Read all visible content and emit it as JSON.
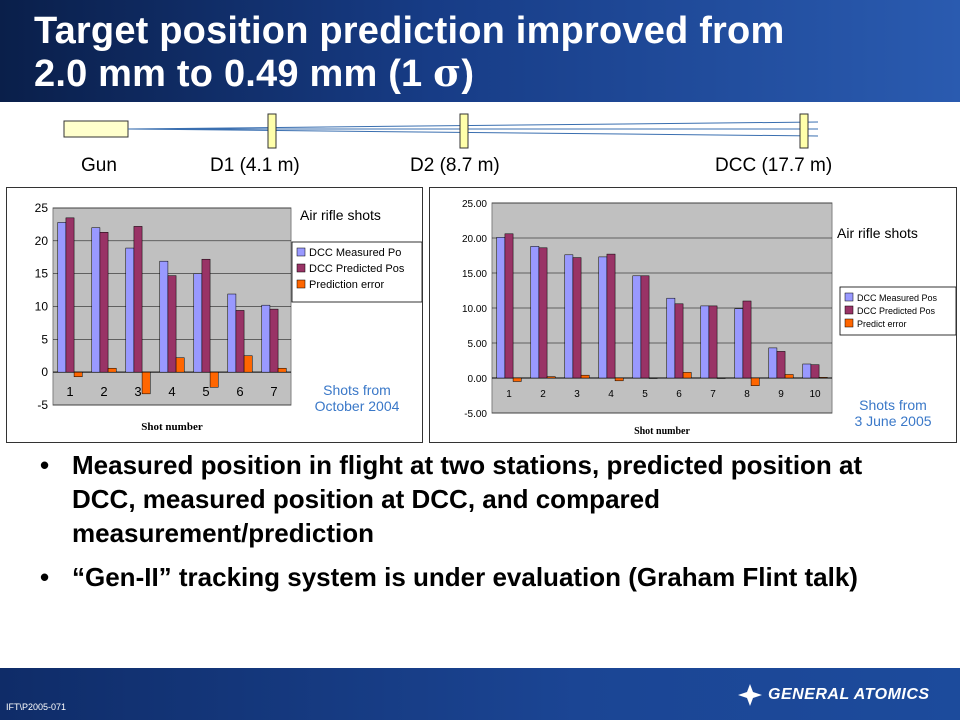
{
  "title": {
    "line1": "Target position prediction improved from",
    "line2_prefix": "2.0 mm to 0.49 mm (1 ",
    "sigma": "σ",
    "line2_suffix": ")"
  },
  "beamline": {
    "labels": [
      "Gun",
      "D1 (4.1 m)",
      "D2 (8.7 m)",
      "DCC (17.7 m)"
    ]
  },
  "left_panel": {
    "note_title": "Air rifle shots",
    "note_date_line1": "Shots from",
    "note_date_line2": "October 2004"
  },
  "right_panel": {
    "note_title": "Air rifle shots",
    "note_date_line1": "Shots from",
    "note_date_line2": "3 June 2005"
  },
  "bullets": [
    "Measured position in flight at two stations, predicted position at DCC, measured position at DCC, and compared measurement/prediction",
    "“Gen-II” tracking system is under evaluation (Graham Flint talk)"
  ],
  "footer": {
    "doc_id": "IFT\\P2005-071",
    "logo_text": "GENERAL ATOMICS"
  },
  "colors": {
    "measured": "#9999ff",
    "predicted": "#993366",
    "error": "#ff6600",
    "plot_bg": "#c0c0c0"
  },
  "chart_data": [
    {
      "type": "bar",
      "categories": [
        "1",
        "2",
        "3",
        "4",
        "5",
        "6",
        "7"
      ],
      "series": [
        {
          "name": "DCC Measured Po",
          "values": [
            22.8,
            22.0,
            18.9,
            16.9,
            15.0,
            11.9,
            10.2
          ]
        },
        {
          "name": "DCC Predicted Pos",
          "values": [
            23.5,
            21.3,
            22.2,
            14.7,
            17.2,
            9.4,
            9.6
          ]
        },
        {
          "name": "Prediction error",
          "values": [
            -0.7,
            0.6,
            -3.3,
            2.2,
            -2.3,
            2.5,
            0.6
          ]
        }
      ],
      "xlabel": "Shot number",
      "ylabel": "",
      "ylim": [
        -5,
        25
      ],
      "yticks": [
        "-5",
        "0",
        "5",
        "10",
        "15",
        "20",
        "25"
      ],
      "grid": true,
      "legend": "right"
    },
    {
      "type": "bar",
      "categories": [
        "1",
        "2",
        "3",
        "4",
        "5",
        "6",
        "7",
        "8",
        "9",
        "10"
      ],
      "series": [
        {
          "name": "DCC Measured Pos",
          "values": [
            20.1,
            18.8,
            17.6,
            17.3,
            14.6,
            11.4,
            10.3,
            9.9,
            4.3,
            2.0
          ]
        },
        {
          "name": "DCC Predicted Pos",
          "values": [
            20.6,
            18.6,
            17.2,
            17.7,
            14.6,
            10.6,
            10.3,
            11.0,
            3.8,
            1.9
          ]
        },
        {
          "name": "Predict error",
          "values": [
            -0.5,
            0.2,
            0.4,
            -0.4,
            0.0,
            0.8,
            0.0,
            -1.1,
            0.5,
            0.1
          ]
        }
      ],
      "xlabel": "Shot number",
      "ylabel": "",
      "ylim": [
        -5,
        25
      ],
      "yticks": [
        "-5.00",
        "0.00",
        "5.00",
        "10.00",
        "15.00",
        "20.00",
        "25.00"
      ],
      "grid": true,
      "legend": "right"
    }
  ]
}
